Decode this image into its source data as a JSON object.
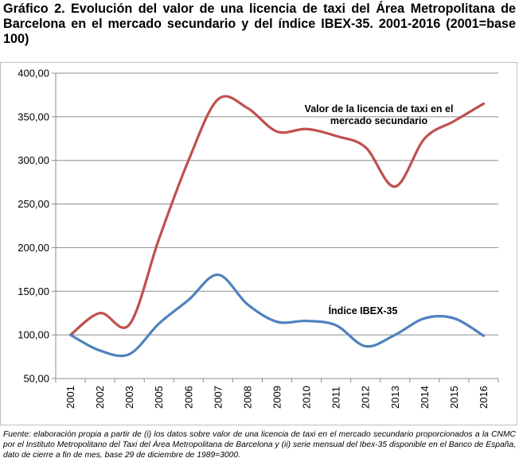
{
  "title": "Gráfico 2. Evolución del valor de una licencia de taxi del Área Metropolitana de Barcelona en el mercado secundario y del índice IBEX-35. 2001-2016 (2001=base 100)",
  "footnote": "Fuente: elaboración propia a partir de (i) los datos sobre valor de una licencia de taxi en el mercado secundario proporcionados a la CNMC por el Instituto Metropolitano del Taxi del Área Metropolitana de Barcelona y (ii) serie mensual del Ibex-35 disponible en el Banco de España, dato de cierre a fin de mes, base 29 de diciembre de 1989=3000.",
  "colors": {
    "taxi": "#c0504d",
    "ibex": "#4f81bd",
    "grid": "#8c8c8c",
    "axis": "#8c8c8c"
  },
  "chart_data": {
    "type": "line",
    "categories": [
      "2001",
      "2002",
      "2003",
      "2005",
      "2006",
      "2007",
      "2008",
      "2009",
      "2010",
      "2011",
      "2012",
      "2013",
      "2014",
      "2015",
      "2016"
    ],
    "ylim": [
      50,
      400
    ],
    "y_ticks": [
      "50,00",
      "100,00",
      "150,00",
      "200,00",
      "250,00",
      "300,00",
      "350,00",
      "400,00"
    ],
    "y_tick_values": [
      50,
      100,
      150,
      200,
      250,
      300,
      350,
      400
    ],
    "grid": "horizontal",
    "smooth": true,
    "series": [
      {
        "name": "Valor de la licencia de taxi en el mercado secundario",
        "label_lines": [
          "Valor de la licencia de taxi en el",
          "mercado secundario"
        ],
        "color": "#c0504d",
        "values": [
          100,
          125,
          112,
          210,
          300,
          370,
          360,
          333,
          336,
          328,
          315,
          270,
          325,
          345,
          365
        ]
      },
      {
        "name": "Índice IBEX-35",
        "label_lines": [
          "Índice IBEX-35"
        ],
        "color": "#4f81bd",
        "values": [
          100,
          82,
          78,
          113,
          140,
          169,
          135,
          115,
          116,
          111,
          87,
          100,
          119,
          119,
          99
        ]
      }
    ]
  }
}
